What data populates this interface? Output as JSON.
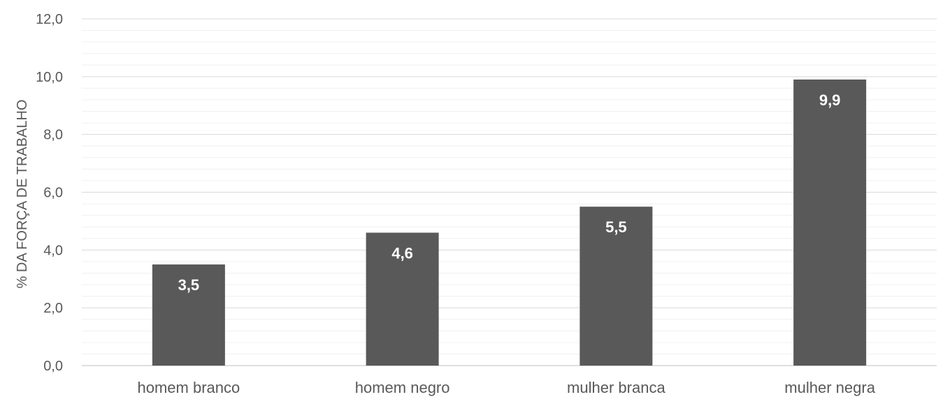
{
  "chart_data": {
    "type": "bar",
    "title": "",
    "xlabel": "",
    "ylabel": "% DA FORÇA DE TRABALHO",
    "categories": [
      "homem branco",
      "homem negro",
      "mulher branca",
      "mulher negra"
    ],
    "values": [
      3.5,
      4.6,
      5.5,
      9.9
    ],
    "data_labels": [
      "3,5",
      "4,6",
      "5,5",
      "9,9"
    ],
    "ylim": [
      0,
      12
    ],
    "yticks": [
      0,
      2,
      4,
      6,
      8,
      10,
      12
    ],
    "ytick_labels": [
      "0,0",
      "2,0",
      "4,0",
      "6,0",
      "8,0",
      "10,0",
      "12,0"
    ],
    "minor_gridlines": true,
    "grid": true,
    "legend": "none",
    "bar_color": "#595959",
    "grid_color": "#d9d9d9"
  }
}
